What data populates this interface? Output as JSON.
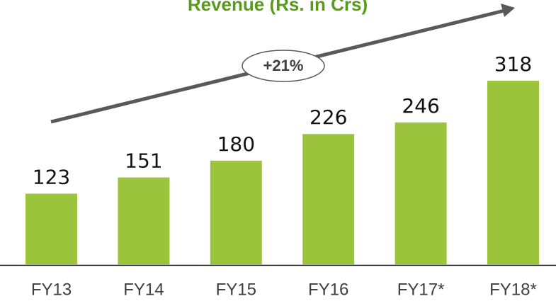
{
  "chart_data": {
    "type": "bar",
    "title": "Revenue (Rs. in Crs)",
    "categories": [
      "FY13",
      "FY14",
      "FY15",
      "FY16",
      "FY17*",
      "FY18*"
    ],
    "values": [
      123,
      151,
      180,
      226,
      246,
      318
    ],
    "color": "#9bc43c",
    "annotation": "+21%"
  }
}
